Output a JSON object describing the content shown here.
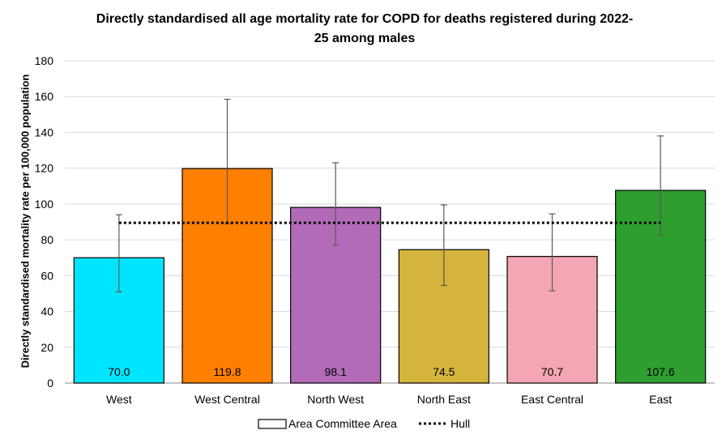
{
  "chart_data": {
    "type": "bar",
    "title": "Directly standardised all age mortality rate for COPD for deaths registered during 2022-25 among males",
    "title_lines": [
      "Directly standardised all age mortality rate for COPD for deaths registered during 2022-",
      "25 among males"
    ],
    "ylabel": "Directly standardised mortality rate per 100,000 population",
    "xlabel": "",
    "ylim": [
      0,
      180
    ],
    "yticks": [
      0,
      20,
      40,
      60,
      80,
      100,
      120,
      140,
      160,
      180
    ],
    "grid": true,
    "legend_position": "bottom",
    "categories": [
      "West",
      "West Central",
      "North West",
      "North East",
      "East Central",
      "East"
    ],
    "series": [
      {
        "name": "Area Committee Area",
        "values": [
          70.0,
          119.8,
          98.1,
          74.5,
          70.7,
          107.6
        ],
        "value_labels": [
          "70.0",
          "119.8",
          "98.1",
          "74.5",
          "70.7",
          "107.6"
        ],
        "ci_lower": [
          51,
          89,
          77,
          54.5,
          51.5,
          82.5
        ],
        "ci_upper": [
          94,
          158.5,
          123,
          99.5,
          94.5,
          138
        ],
        "colors": [
          "#00e5ff",
          "#ff7f00",
          "#b36bb8",
          "#d4b43c",
          "#f4a6b2",
          "#2e9e2e"
        ]
      },
      {
        "name": "Hull",
        "type": "reference-line",
        "value": 89.5
      }
    ]
  }
}
